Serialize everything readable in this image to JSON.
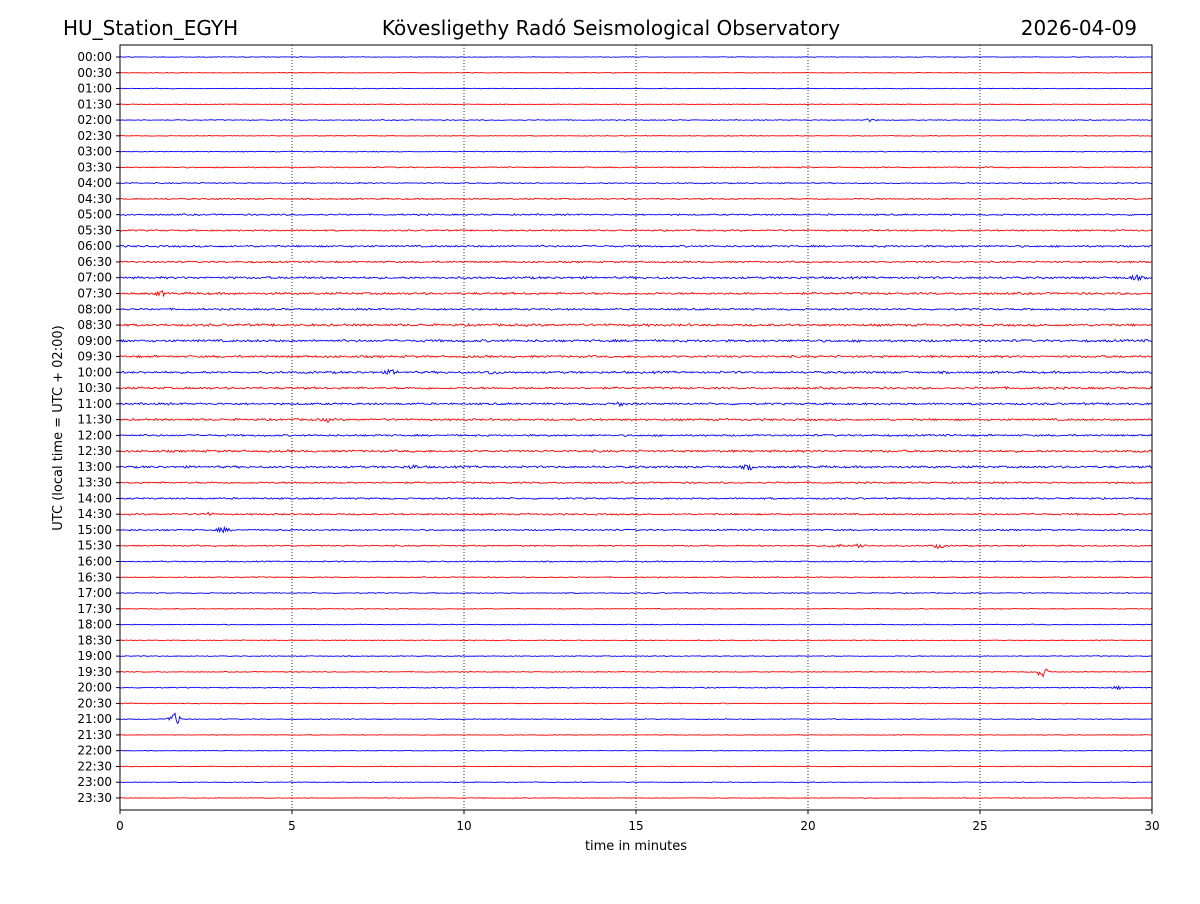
{
  "header": {
    "station": "HU_Station_EGYH",
    "observatory": "Kövesligethy Radó Seismological Observatory",
    "date": "2026-04-09"
  },
  "chart_data": {
    "type": "line",
    "title": "Kövesligethy Radó Seismological Observatory",
    "xlabel": "time in minutes",
    "ylabel": "UTC (local time = UTC + 02:00)",
    "xlim": [
      0,
      30
    ],
    "xticks": [
      0,
      5,
      10,
      15,
      20,
      25,
      30
    ],
    "vertical_gridlines": [
      5,
      10,
      15,
      20,
      25
    ],
    "trace_colors": [
      "#0000ff",
      "#ff0000"
    ],
    "rows": [
      {
        "label": "00:00",
        "noise": 0.4
      },
      {
        "label": "00:30",
        "noise": 0.4
      },
      {
        "label": "01:00",
        "noise": 0.4
      },
      {
        "label": "01:30",
        "noise": 0.4
      },
      {
        "label": "02:00",
        "noise": 0.5,
        "events": [
          {
            "t": 21.8,
            "amp": 1.2
          }
        ]
      },
      {
        "label": "02:30",
        "noise": 0.4
      },
      {
        "label": "03:00",
        "noise": 0.5
      },
      {
        "label": "03:30",
        "noise": 0.7
      },
      {
        "label": "04:00",
        "noise": 0.7
      },
      {
        "label": "04:30",
        "noise": 0.8
      },
      {
        "label": "05:00",
        "noise": 0.9
      },
      {
        "label": "05:30",
        "noise": 0.9
      },
      {
        "label": "06:00",
        "noise": 1.1
      },
      {
        "label": "06:30",
        "noise": 1.0
      },
      {
        "label": "07:00",
        "noise": 1.3,
        "events": [
          {
            "t": 29.5,
            "amp": 2.0
          }
        ]
      },
      {
        "label": "07:30",
        "noise": 1.3,
        "events": [
          {
            "t": 1.2,
            "amp": 1.8
          }
        ]
      },
      {
        "label": "08:00",
        "noise": 1.1
      },
      {
        "label": "08:30",
        "noise": 1.4
      },
      {
        "label": "09:00",
        "noise": 1.4
      },
      {
        "label": "09:30",
        "noise": 1.3
      },
      {
        "label": "10:00",
        "noise": 1.3,
        "events": [
          {
            "t": 7.9,
            "amp": 1.8
          },
          {
            "t": 10.8,
            "amp": 1.5
          }
        ]
      },
      {
        "label": "10:30",
        "noise": 1.3
      },
      {
        "label": "11:00",
        "noise": 1.2,
        "events": [
          {
            "t": 14.5,
            "amp": 1.5
          }
        ]
      },
      {
        "label": "11:30",
        "noise": 1.2,
        "events": [
          {
            "t": 6.0,
            "amp": 1.5
          }
        ]
      },
      {
        "label": "12:00",
        "noise": 1.1
      },
      {
        "label": "12:30",
        "noise": 1.3
      },
      {
        "label": "13:00",
        "noise": 1.3,
        "events": [
          {
            "t": 8.5,
            "amp": 1.5
          },
          {
            "t": 18.3,
            "amp": 2.0
          }
        ]
      },
      {
        "label": "13:30",
        "noise": 1.0
      },
      {
        "label": "14:00",
        "noise": 1.0
      },
      {
        "label": "14:30",
        "noise": 1.0,
        "events": [
          {
            "t": 2.5,
            "amp": 1.4
          }
        ]
      },
      {
        "label": "15:00",
        "noise": 0.9,
        "events": [
          {
            "t": 3.0,
            "amp": 2.2
          }
        ]
      },
      {
        "label": "15:30",
        "noise": 0.8,
        "events": [
          {
            "t": 20.8,
            "amp": 2.2
          },
          {
            "t": 21.5,
            "amp": 2.2
          },
          {
            "t": 23.8,
            "amp": 2.0
          }
        ]
      },
      {
        "label": "16:00",
        "noise": 0.7
      },
      {
        "label": "16:30",
        "noise": 0.6
      },
      {
        "label": "17:00",
        "noise": 0.6
      },
      {
        "label": "17:30",
        "noise": 0.5
      },
      {
        "label": "18:00",
        "noise": 0.5
      },
      {
        "label": "18:30",
        "noise": 0.5
      },
      {
        "label": "19:00",
        "noise": 0.5
      },
      {
        "label": "19:30",
        "noise": 0.5,
        "events": [
          {
            "t": 26.8,
            "amp": 4.5
          }
        ]
      },
      {
        "label": "20:00",
        "noise": 0.6,
        "events": [
          {
            "t": 29.0,
            "amp": 1.2
          }
        ]
      },
      {
        "label": "20:30",
        "noise": 0.5
      },
      {
        "label": "21:00",
        "noise": 0.5,
        "events": [
          {
            "t": 1.6,
            "amp": 5.5
          }
        ]
      },
      {
        "label": "21:30",
        "noise": 0.4
      },
      {
        "label": "22:00",
        "noise": 0.4
      },
      {
        "label": "22:30",
        "noise": 0.4
      },
      {
        "label": "23:00",
        "noise": 0.4
      },
      {
        "label": "23:30",
        "noise": 0.4
      }
    ]
  }
}
